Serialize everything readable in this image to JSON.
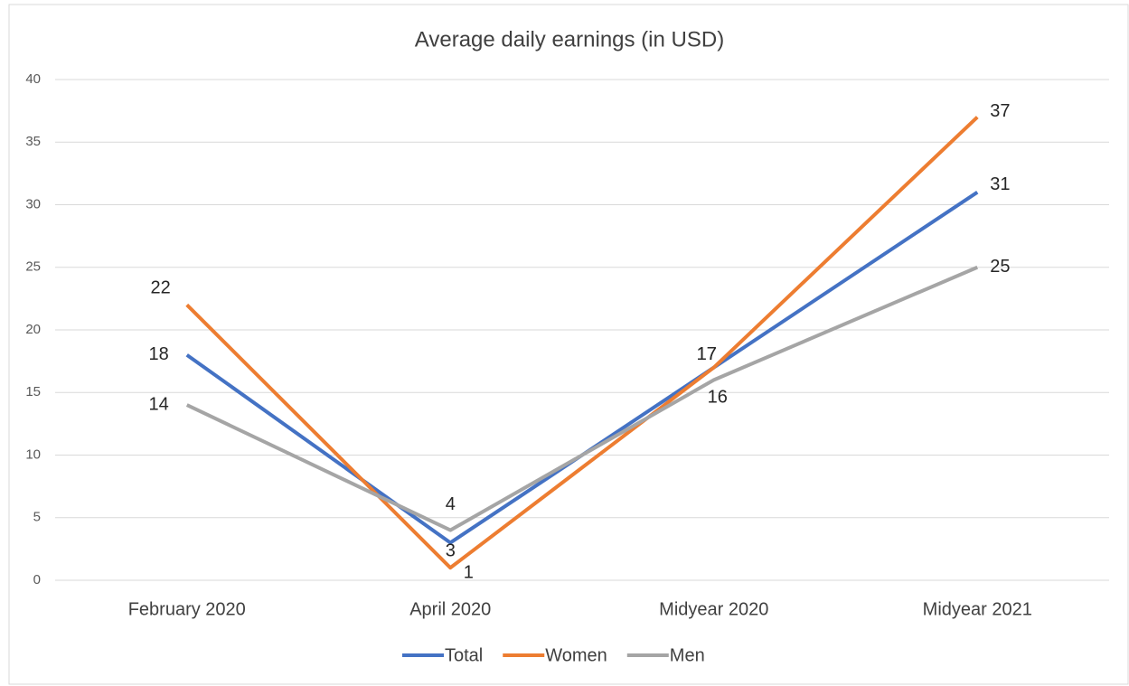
{
  "chart_data": {
    "type": "line",
    "title": "Average daily earnings (in USD)",
    "categories": [
      "February 2020",
      "April 2020",
      "Midyear 2020",
      "Midyear 2021"
    ],
    "series": [
      {
        "name": "Total",
        "color": "#4472c4",
        "values": [
          18,
          3,
          17,
          31
        ]
      },
      {
        "name": "Women",
        "color": "#ed7d31",
        "values": [
          22,
          1,
          17,
          37
        ]
      },
      {
        "name": "Men",
        "color": "#a5a5a5",
        "values": [
          14,
          4,
          16,
          25
        ]
      }
    ],
    "ylim": [
      0,
      40
    ],
    "yticks": [
      0,
      5,
      10,
      15,
      20,
      25,
      30,
      35,
      40
    ],
    "grid": true,
    "legend": "bottom"
  }
}
